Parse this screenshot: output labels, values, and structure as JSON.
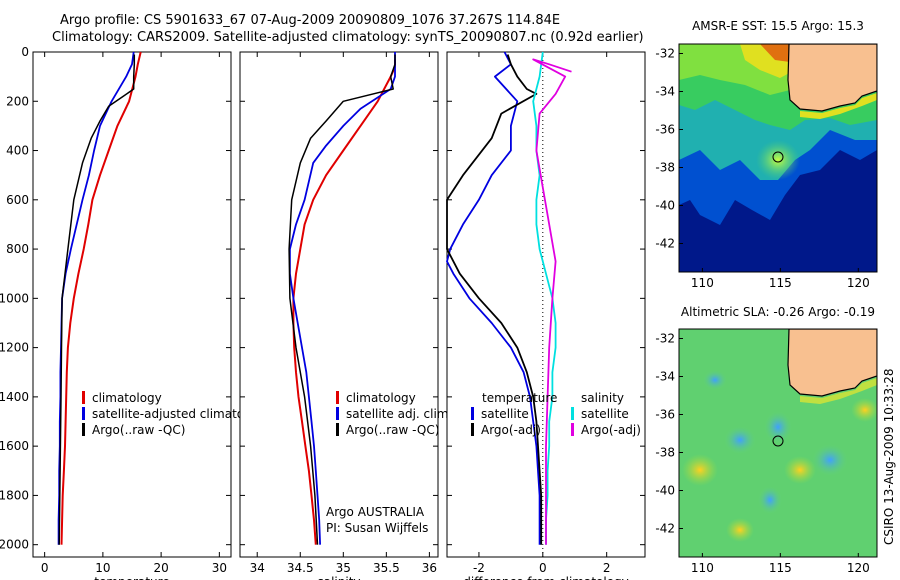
{
  "header": {
    "line1": "Argo profile: CS 5901633_67 07-Aug-2009 20090809_1076 37.267S 114.84E",
    "line2": "Climatology: CARS2009. Satellite-adjusted climatology: synTS_20090807.nc (0.92d earlier)"
  },
  "side_stamp": "CSIRO 13-Aug-2009 10:33:28",
  "chart_data": [
    {
      "type": "line",
      "xlabel": "temperature",
      "xlim": [
        -2,
        32
      ],
      "xticks": [
        0,
        10,
        20,
        30
      ],
      "ylim": [
        0,
        2050
      ],
      "yticks": [
        0,
        200,
        400,
        600,
        800,
        1000,
        1200,
        1400,
        1600,
        1800,
        2000
      ],
      "y_reversed": true,
      "legend": [
        "climatology",
        "satellite-adjusted climatology",
        "Argo(..raw -QC)"
      ],
      "series": [
        {
          "name": "climatology",
          "color": "#e00000",
          "points": [
            [
              16.5,
              0
            ],
            [
              16.0,
              50
            ],
            [
              15.6,
              100
            ],
            [
              14.5,
              200
            ],
            [
              12.5,
              300
            ],
            [
              11.0,
              400
            ],
            [
              9.5,
              500
            ],
            [
              8.2,
              600
            ],
            [
              7.5,
              700
            ],
            [
              6.7,
              800
            ],
            [
              5.8,
              900
            ],
            [
              5.0,
              1000
            ],
            [
              4.4,
              1100
            ],
            [
              4.0,
              1200
            ],
            [
              3.8,
              1300
            ],
            [
              3.7,
              1400
            ],
            [
              3.6,
              1500
            ],
            [
              3.5,
              1600
            ],
            [
              3.3,
              1700
            ],
            [
              3.1,
              1800
            ],
            [
              3.0,
              1900
            ],
            [
              2.9,
              2000
            ]
          ]
        },
        {
          "name": "satellite-adjusted climatology",
          "color": "#0000e0",
          "points": [
            [
              15.3,
              0
            ],
            [
              15.0,
              50
            ],
            [
              14.0,
              100
            ],
            [
              11.5,
              200
            ],
            [
              9.5,
              300
            ],
            [
              8.5,
              400
            ],
            [
              7.6,
              500
            ],
            [
              6.5,
              600
            ],
            [
              5.5,
              700
            ],
            [
              4.5,
              800
            ],
            [
              3.6,
              900
            ],
            [
              3.0,
              1000
            ],
            [
              2.9,
              1100
            ],
            [
              2.8,
              1200
            ],
            [
              2.7,
              1300
            ],
            [
              2.7,
              1400
            ],
            [
              2.6,
              1500
            ],
            [
              2.6,
              1600
            ],
            [
              2.5,
              1700
            ],
            [
              2.5,
              1800
            ],
            [
              2.4,
              1900
            ],
            [
              2.4,
              2000
            ]
          ]
        },
        {
          "name": "Argo(..raw -QC)",
          "color": "#000000",
          "points": [
            [
              15.4,
              10
            ],
            [
              15.4,
              50
            ],
            [
              15.3,
              100
            ],
            [
              15.3,
              150
            ],
            [
              13.5,
              180
            ],
            [
              11.0,
              220
            ],
            [
              9.5,
              280
            ],
            [
              8.0,
              350
            ],
            [
              6.5,
              450
            ],
            [
              5.0,
              600
            ],
            [
              4.0,
              800
            ],
            [
              3.5,
              900
            ],
            [
              3.0,
              1000
            ],
            [
              2.9,
              1200
            ],
            [
              2.8,
              1400
            ],
            [
              2.7,
              1600
            ],
            [
              2.6,
              1800
            ],
            [
              2.5,
              2000
            ]
          ]
        }
      ]
    },
    {
      "type": "line",
      "xlabel": "salinity",
      "xlim": [
        33.8,
        36.1
      ],
      "xticks": [
        34,
        34.5,
        35,
        35.5,
        36
      ],
      "ylim": [
        0,
        2050
      ],
      "y_reversed": true,
      "legend": [
        "climatology",
        "satellite adj. clim.",
        "Argo(..raw -QC)"
      ],
      "annotations": [
        "Argo AUSTRALIA",
        "PI: Susan Wijffels"
      ],
      "series": [
        {
          "name": "climatology",
          "color": "#e00000",
          "points": [
            [
              35.6,
              30
            ],
            [
              35.6,
              60
            ],
            [
              35.55,
              100
            ],
            [
              35.4,
              200
            ],
            [
              35.2,
              300
            ],
            [
              35.0,
              400
            ],
            [
              34.8,
              500
            ],
            [
              34.65,
              600
            ],
            [
              34.55,
              700
            ],
            [
              34.5,
              800
            ],
            [
              34.45,
              900
            ],
            [
              34.42,
              1000
            ],
            [
              34.42,
              1100
            ],
            [
              34.43,
              1200
            ],
            [
              34.45,
              1300
            ],
            [
              34.48,
              1400
            ],
            [
              34.52,
              1500
            ],
            [
              34.56,
              1600
            ],
            [
              34.6,
              1700
            ],
            [
              34.63,
              1800
            ],
            [
              34.66,
              1900
            ],
            [
              34.68,
              2000
            ]
          ]
        },
        {
          "name": "satellite adj. clim.",
          "color": "#0000e0",
          "points": [
            [
              35.6,
              0
            ],
            [
              35.6,
              100
            ],
            [
              35.55,
              150
            ],
            [
              35.2,
              230
            ],
            [
              35.0,
              300
            ],
            [
              34.8,
              380
            ],
            [
              34.65,
              450
            ],
            [
              34.55,
              600
            ],
            [
              34.45,
              700
            ],
            [
              34.38,
              800
            ],
            [
              34.38,
              900
            ],
            [
              34.42,
              1000
            ],
            [
              34.47,
              1100
            ],
            [
              34.52,
              1200
            ],
            [
              34.57,
              1300
            ],
            [
              34.6,
              1400
            ],
            [
              34.63,
              1500
            ],
            [
              34.66,
              1600
            ],
            [
              34.68,
              1700
            ],
            [
              34.7,
              1800
            ],
            [
              34.72,
              1900
            ],
            [
              34.73,
              2000
            ]
          ]
        },
        {
          "name": "Argo(..raw -QC)",
          "color": "#000000",
          "points": [
            [
              35.6,
              10
            ],
            [
              35.6,
              50
            ],
            [
              35.55,
              100
            ],
            [
              35.58,
              150
            ],
            [
              35.0,
              200
            ],
            [
              34.8,
              280
            ],
            [
              34.62,
              350
            ],
            [
              34.5,
              450
            ],
            [
              34.4,
              600
            ],
            [
              34.37,
              800
            ],
            [
              34.38,
              1000
            ],
            [
              34.45,
              1200
            ],
            [
              34.55,
              1400
            ],
            [
              34.62,
              1600
            ],
            [
              34.67,
              1800
            ],
            [
              34.7,
              2000
            ]
          ]
        }
      ]
    },
    {
      "type": "line",
      "xlabel": "difference from climatology",
      "xlim": [
        -3,
        3.2
      ],
      "xticks": [
        -2,
        0,
        2
      ],
      "ylim": [
        0,
        2050
      ],
      "y_reversed": true,
      "legend_temperature": {
        "title": "temperature",
        "items": [
          "satellite",
          "Argo(-adj)"
        ]
      },
      "legend_salinity": {
        "title": "salinity",
        "items": [
          "satellite",
          "Argo(-adj)"
        ]
      },
      "series": [
        {
          "name": "temperature satellite",
          "color": "#0000e0",
          "points": [
            [
              -1.2,
              0
            ],
            [
              -1.0,
              50
            ],
            [
              -1.5,
              100
            ],
            [
              -0.8,
              200
            ],
            [
              -1.0,
              300
            ],
            [
              -1.0,
              400
            ],
            [
              -1.6,
              500
            ],
            [
              -2.0,
              600
            ],
            [
              -2.5,
              700
            ],
            [
              -2.9,
              800
            ],
            [
              -3.0,
              850
            ],
            [
              -2.8,
              900
            ],
            [
              -2.3,
              1000
            ],
            [
              -1.6,
              1100
            ],
            [
              -1.0,
              1200
            ],
            [
              -0.6,
              1300
            ],
            [
              -0.4,
              1400
            ],
            [
              -0.3,
              1500
            ],
            [
              -0.2,
              1600
            ],
            [
              -0.15,
              1700
            ],
            [
              -0.1,
              1800
            ],
            [
              -0.1,
              1900
            ],
            [
              -0.1,
              2000
            ]
          ]
        },
        {
          "name": "temperature Argo(-adj)",
          "color": "#000000",
          "points": [
            [
              -1.1,
              10
            ],
            [
              -1.0,
              50
            ],
            [
              -0.8,
              100
            ],
            [
              -0.5,
              150
            ],
            [
              -0.2,
              170
            ],
            [
              -1.3,
              250
            ],
            [
              -1.6,
              350
            ],
            [
              -2.5,
              500
            ],
            [
              -3.0,
              600
            ],
            [
              -3.0,
              800
            ],
            [
              -2.6,
              900
            ],
            [
              -2.0,
              1000
            ],
            [
              -1.3,
              1100
            ],
            [
              -0.8,
              1200
            ],
            [
              -0.5,
              1300
            ],
            [
              -0.3,
              1400
            ],
            [
              -0.2,
              1500
            ],
            [
              -0.15,
              1600
            ],
            [
              -0.1,
              1700
            ],
            [
              -0.05,
              1800
            ],
            [
              -0.05,
              1900
            ],
            [
              -0.05,
              2000
            ]
          ]
        },
        {
          "name": "salinity satellite",
          "color": "#00e0e0",
          "points": [
            [
              0,
              0
            ],
            [
              -0.1,
              100
            ],
            [
              -0.3,
              200
            ],
            [
              -0.2,
              300
            ],
            [
              -0.2,
              400
            ],
            [
              -0.1,
              500
            ],
            [
              -0.2,
              600
            ],
            [
              -0.2,
              700
            ],
            [
              -0.1,
              800
            ],
            [
              0.1,
              900
            ],
            [
              0.3,
              1000
            ],
            [
              0.4,
              1100
            ],
            [
              0.4,
              1200
            ],
            [
              0.3,
              1300
            ],
            [
              0.3,
              1400
            ],
            [
              0.2,
              1500
            ],
            [
              0.2,
              1600
            ],
            [
              0.15,
              1700
            ],
            [
              0.15,
              1800
            ],
            [
              0.1,
              1900
            ],
            [
              0.1,
              2000
            ]
          ]
        },
        {
          "name": "salinity Argo(-adj)",
          "color": "#e000e0",
          "points": [
            [
              0.9,
              80
            ],
            [
              0.2,
              50
            ],
            [
              -0.3,
              30
            ],
            [
              0.7,
              100
            ],
            [
              0.4,
              170
            ],
            [
              -0.1,
              250
            ],
            [
              -0.2,
              400
            ],
            [
              0.0,
              550
            ],
            [
              0.2,
              700
            ],
            [
              0.4,
              850
            ],
            [
              0.3,
              1000
            ],
            [
              0.2,
              1200
            ],
            [
              0.15,
              1400
            ],
            [
              0.1,
              1600
            ],
            [
              0.1,
              1800
            ],
            [
              0.1,
              2000
            ]
          ]
        }
      ]
    },
    {
      "type": "heatmap",
      "title": "AMSR-E SST: 15.5 Argo: 15.3",
      "xlim": [
        108.5,
        121.2
      ],
      "ylim": [
        -43.5,
        -31.5
      ],
      "xticks": [
        110,
        115,
        120
      ],
      "yticks": [
        -32,
        -34,
        -36,
        -38,
        -40,
        -42
      ],
      "marker": [
        114.84,
        -37.267
      ]
    },
    {
      "type": "heatmap",
      "title": "Altimetric SLA: -0.26 Argo: -0.19",
      "xlim": [
        108.5,
        121.2
      ],
      "ylim": [
        -43.5,
        -31.5
      ],
      "xticks": [
        110,
        115,
        120
      ],
      "yticks": [
        -32,
        -34,
        -36,
        -38,
        -40,
        -42
      ],
      "marker": [
        114.84,
        -37.267
      ]
    }
  ]
}
